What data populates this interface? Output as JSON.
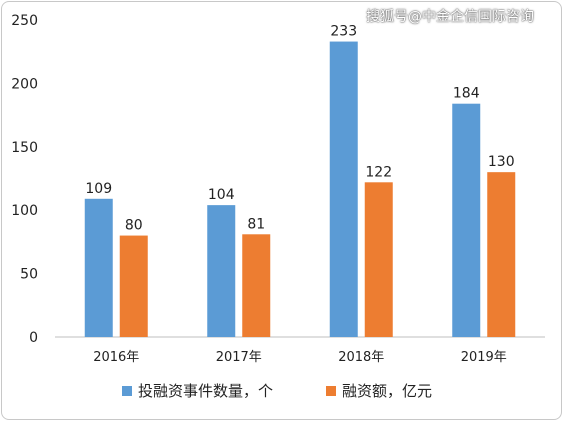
{
  "watermark": "搜狐号@中金企信国际咨询",
  "colors": {
    "series1": "#5b9bd5",
    "series2": "#ed7d31",
    "axis": "#bfbfbf",
    "text": "#222222"
  },
  "chart_data": {
    "type": "bar",
    "categories": [
      "2016年",
      "2017年",
      "2018年",
      "2019年"
    ],
    "series": [
      {
        "name": "投融资事件数量，个",
        "values": [
          109,
          104,
          233,
          184
        ]
      },
      {
        "name": "融资额，亿元",
        "values": [
          80,
          81,
          122,
          130
        ]
      }
    ],
    "yticks": [
      "0",
      "50",
      "100",
      "150",
      "200",
      "250"
    ],
    "ylim": [
      0,
      250
    ],
    "grid": false,
    "legend": "bottom"
  }
}
